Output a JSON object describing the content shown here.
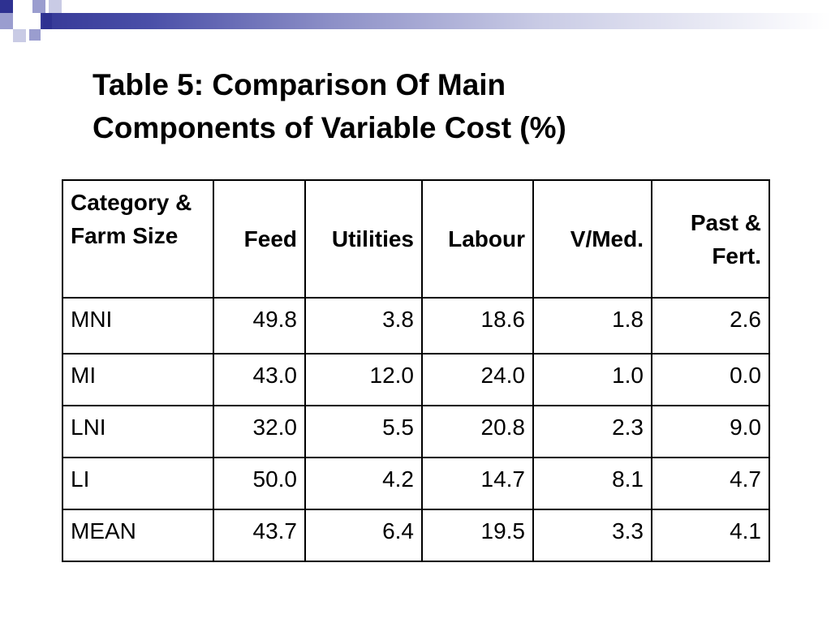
{
  "slide": {
    "title_line1": "Table 5: Comparison Of Main",
    "title_line2": "Components of Variable Cost (%)"
  },
  "table": {
    "headers": [
      "Category & Farm Size",
      "Feed",
      "Utilities",
      "Labour",
      "V/Med.",
      "Past & Fert."
    ],
    "rows": [
      [
        "MNI",
        "49.8",
        "3.8",
        "18.6",
        "1.8",
        "2.6"
      ],
      [
        "MI",
        "43.0",
        "12.0",
        "24.0",
        "1.0",
        "0.0"
      ],
      [
        "LNI",
        "32.0",
        "5.5",
        "20.8",
        "2.3",
        "9.0"
      ],
      [
        "LI",
        "50.0",
        "4.2",
        "14.7",
        "8.1",
        "4.7"
      ],
      [
        "MEAN",
        "43.7",
        "6.4",
        "19.5",
        "3.3",
        "4.1"
      ]
    ]
  },
  "colors": {
    "header_accent": "#2e3191",
    "text": "#000000",
    "background": "#ffffff"
  }
}
